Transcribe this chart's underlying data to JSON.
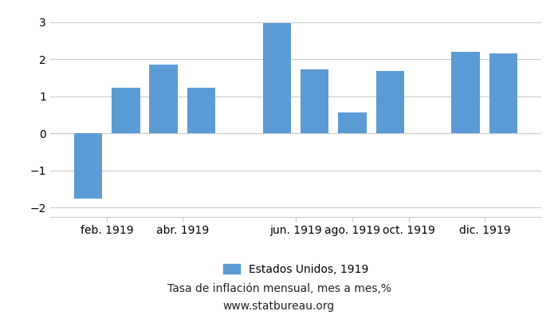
{
  "bar_positions": [
    1,
    2,
    3,
    4,
    6,
    7,
    8,
    9,
    11,
    12
  ],
  "bar_values": [
    -1.75,
    1.22,
    1.85,
    1.22,
    2.97,
    1.72,
    0.57,
    1.68,
    2.19,
    2.16
  ],
  "bar_color": "#5b9bd5",
  "background_color": "#ffffff",
  "grid_color": "#cccccc",
  "title": "Tasa de inflación mensual, mes a mes,%",
  "subtitle": "www.statbureau.org",
  "legend_label": "Estados Unidos, 1919",
  "ylim": [
    -2.25,
    3.25
  ],
  "yticks": [
    -2,
    -1,
    0,
    1,
    2,
    3
  ],
  "xtick_labels": [
    "feb. 1919",
    "abr. 1919",
    "jun. 1919",
    "ago. 1919",
    "oct. 1919",
    "dic. 1919"
  ],
  "xtick_positions": [
    1.5,
    3.5,
    6.5,
    8.0,
    9.5,
    11.5
  ],
  "xlim": [
    0,
    13
  ],
  "title_fontsize": 10,
  "subtitle_fontsize": 10,
  "tick_fontsize": 10,
  "legend_fontsize": 10,
  "bar_width": 0.75
}
